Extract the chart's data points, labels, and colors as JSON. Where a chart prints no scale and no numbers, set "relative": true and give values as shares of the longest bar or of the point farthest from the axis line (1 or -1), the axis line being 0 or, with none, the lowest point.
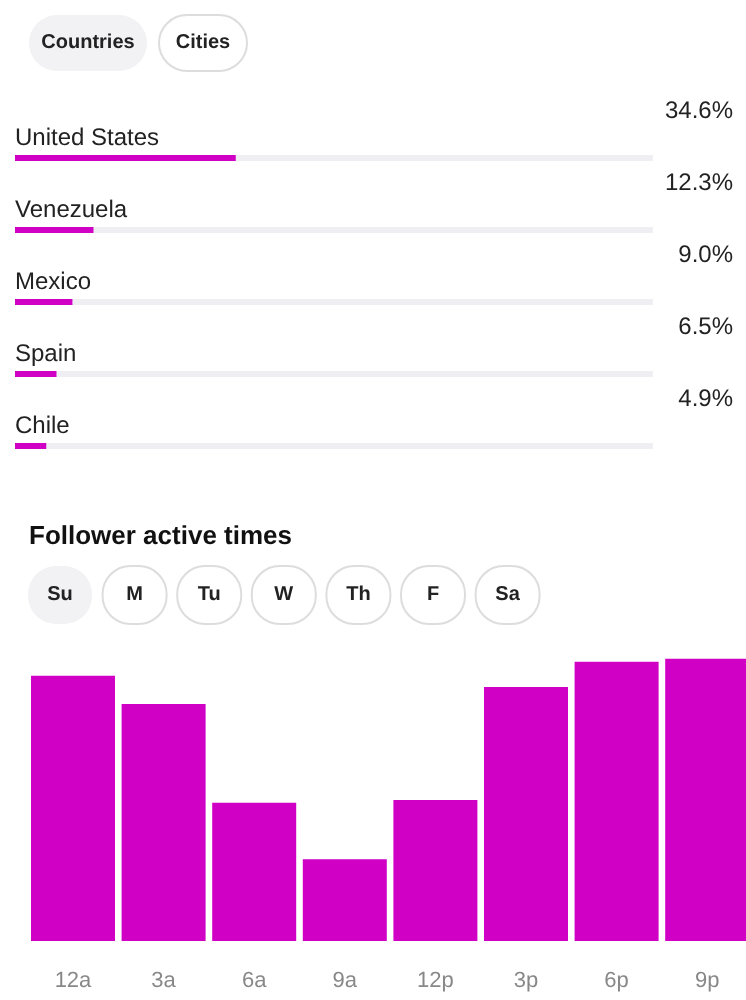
{
  "chart_data": [
    {
      "type": "bar",
      "orientation": "horizontal",
      "categories": [
        "United States",
        "Venezuela",
        "Mexico",
        "Spain",
        "Chile"
      ],
      "values": [
        34.6,
        12.3,
        9.0,
        6.5,
        4.9
      ],
      "value_labels": [
        "34.6%",
        "12.3%",
        "9.0%",
        "6.5%",
        "4.9%"
      ],
      "color": "#d100c5",
      "xlim": [
        0,
        100
      ],
      "tick_labels": false,
      "annotations": [
        "Countries",
        "Cities"
      ]
    },
    {
      "type": "bar",
      "title": "Follower active times",
      "categories": [
        "12a",
        "3a",
        "6a",
        "9a",
        "12p",
        "3p",
        "6p",
        "9p"
      ],
      "values": [
        0.94,
        0.84,
        0.49,
        0.29,
        0.5,
        0.9,
        0.99,
        1
      ],
      "relative": true,
      "color": "#d100c5",
      "annotations": [
        "Su",
        "M",
        "Tu",
        "W",
        "Th",
        "F",
        "Sa"
      ]
    }
  ]
}
